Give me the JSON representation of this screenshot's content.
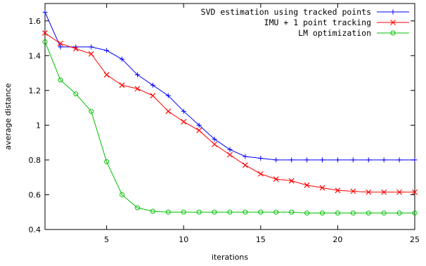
{
  "chart_data": {
    "type": "line",
    "title": "",
    "xlabel": "iterations",
    "ylabel": "average distance",
    "xlim": [
      1,
      25
    ],
    "ylim": [
      0.4,
      1.7
    ],
    "grid": false,
    "legend_position": "top-right",
    "x_ticks": [
      5,
      10,
      15,
      20,
      25
    ],
    "y_ticks": [
      0.4,
      0.6,
      0.8,
      1,
      1.2,
      1.4,
      1.6
    ],
    "x_tick_labels": [
      "5",
      "10",
      "15",
      "20",
      "25"
    ],
    "y_tick_labels": [
      "0.4",
      "0.6",
      "0.8",
      "1",
      "1.2",
      "1.4",
      "1.6"
    ],
    "x": [
      1,
      2,
      3,
      4,
      5,
      6,
      7,
      8,
      9,
      10,
      11,
      12,
      13,
      14,
      15,
      16,
      17,
      18,
      19,
      20,
      21,
      22,
      23,
      24,
      25
    ],
    "series": [
      {
        "name": "SVD estimation using tracked points",
        "color": "#0000ff",
        "marker": "plus",
        "values": [
          1.65,
          1.45,
          1.45,
          1.45,
          1.43,
          1.38,
          1.29,
          1.23,
          1.17,
          1.08,
          1.0,
          0.92,
          0.86,
          0.82,
          0.81,
          0.8,
          0.8,
          0.8,
          0.8,
          0.8,
          0.8,
          0.8,
          0.8,
          0.8,
          0.8
        ]
      },
      {
        "name": "IMU + 1 point tracking",
        "color": "#ff0000",
        "marker": "cross",
        "values": [
          1.53,
          1.47,
          1.44,
          1.41,
          1.29,
          1.23,
          1.21,
          1.17,
          1.08,
          1.02,
          0.97,
          0.89,
          0.83,
          0.77,
          0.72,
          0.69,
          0.68,
          0.655,
          0.64,
          0.625,
          0.62,
          0.615,
          0.615,
          0.615,
          0.615
        ]
      },
      {
        "name": "LM optimization",
        "color": "#00c000",
        "marker": "circle",
        "values": [
          1.48,
          1.26,
          1.18,
          1.08,
          0.79,
          0.6,
          0.525,
          0.505,
          0.5,
          0.5,
          0.5,
          0.5,
          0.5,
          0.5,
          0.5,
          0.5,
          0.5,
          0.495,
          0.495,
          0.495,
          0.495,
          0.495,
          0.495,
          0.495,
          0.495
        ]
      }
    ]
  }
}
